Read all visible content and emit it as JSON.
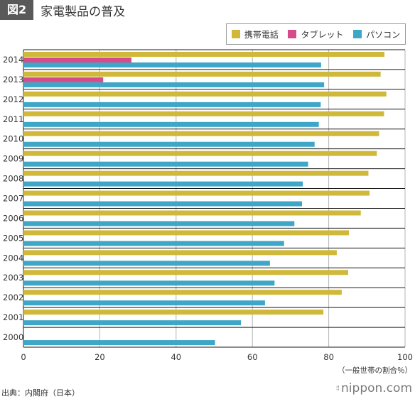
{
  "header": {
    "badge": "図2",
    "title": "家電製品の普及"
  },
  "source": "出典：内閣府（日本）",
  "brand": "nippon.com",
  "chart_data": {
    "type": "bar",
    "orientation": "horizontal",
    "title": "家電製品の普及",
    "xlabel": "（一般世帯の割合％）",
    "ylabel": "",
    "xlim": [
      0,
      100
    ],
    "xticks": [
      0,
      20,
      40,
      60,
      80,
      100
    ],
    "grid": true,
    "legend_position": "top-right",
    "categories": [
      "2014",
      "2013",
      "2012",
      "2011",
      "2010",
      "2009",
      "2008",
      "2007",
      "2006",
      "2005",
      "2004",
      "2003",
      "2002",
      "2001",
      "2000"
    ],
    "series": [
      {
        "name": "携帯電話",
        "color": "#d0b83a",
        "values": [
          94.6,
          93.6,
          95.1,
          94.5,
          93.2,
          92.6,
          90.4,
          90.7,
          88.4,
          85.3,
          82.1,
          85.1,
          83.4,
          78.6,
          null
        ]
      },
      {
        "name": "タブレット",
        "color": "#d64c8a",
        "values": [
          28.3,
          20.9,
          null,
          null,
          null,
          null,
          null,
          null,
          null,
          null,
          null,
          null,
          null,
          null,
          null
        ]
      },
      {
        "name": "パソコン",
        "color": "#3ea7c7",
        "values": [
          78.0,
          78.8,
          77.9,
          77.4,
          76.3,
          74.6,
          73.2,
          73.0,
          71.0,
          68.3,
          64.6,
          65.8,
          63.3,
          57.0,
          50.2
        ]
      }
    ]
  }
}
